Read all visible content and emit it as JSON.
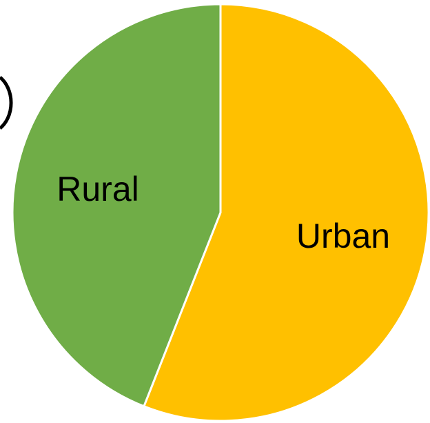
{
  "chart_data": {
    "type": "pie",
    "slices": [
      {
        "label": "Urban",
        "value": 56,
        "color": "#ffc000"
      },
      {
        "label": "Rural",
        "value": 44,
        "color": "#70ad47"
      }
    ],
    "start_angle_deg": 0,
    "direction": "clockwise",
    "legend": "none",
    "labels_inside": true
  }
}
